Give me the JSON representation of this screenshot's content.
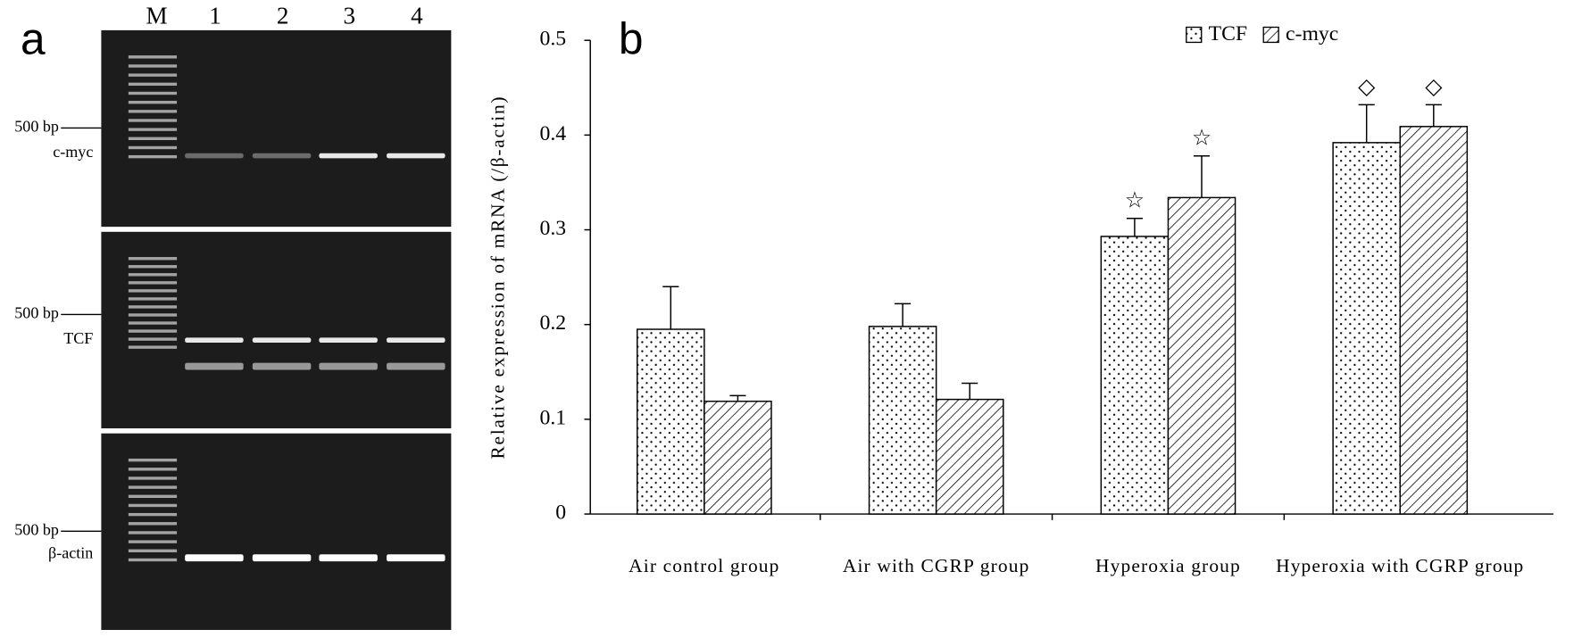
{
  "panel_a": {
    "label": "a",
    "lanes": [
      "M",
      "1",
      "2",
      "3",
      "4"
    ],
    "gels": [
      {
        "marker": "500 bp",
        "gene": "c-myc"
      },
      {
        "marker": "500 bp",
        "gene": "TCF"
      },
      {
        "marker": "500 bp",
        "gene": "β-actin"
      }
    ]
  },
  "chart_data": {
    "type": "bar",
    "panel_label": "b",
    "y_label": "Relative expression of mRNA (/β-actin)",
    "categories": [
      "Air control group",
      "Air with CGRP group",
      "Hyperoxia group",
      "Hyperoxia with CGRP group"
    ],
    "series": [
      {
        "name": "TCF",
        "color": "#000000",
        "pattern": "dots",
        "values": [
          0.195,
          0.198,
          0.293,
          0.392
        ],
        "errors": [
          0.045,
          0.024,
          0.019,
          0.04
        ],
        "markers": [
          null,
          null,
          "☆",
          "◇"
        ]
      },
      {
        "name": "c-myc",
        "color": "#000000",
        "pattern": "hatch",
        "values": [
          0.119,
          0.121,
          0.334,
          0.409
        ],
        "errors": [
          0.006,
          0.017,
          0.044,
          0.023
        ],
        "markers": [
          null,
          null,
          "☆",
          "◇"
        ]
      }
    ],
    "ylim": [
      0,
      0.5
    ],
    "yticks": [
      0,
      0.1,
      0.2,
      0.3,
      0.4,
      0.5
    ],
    "legend": "top-right"
  }
}
